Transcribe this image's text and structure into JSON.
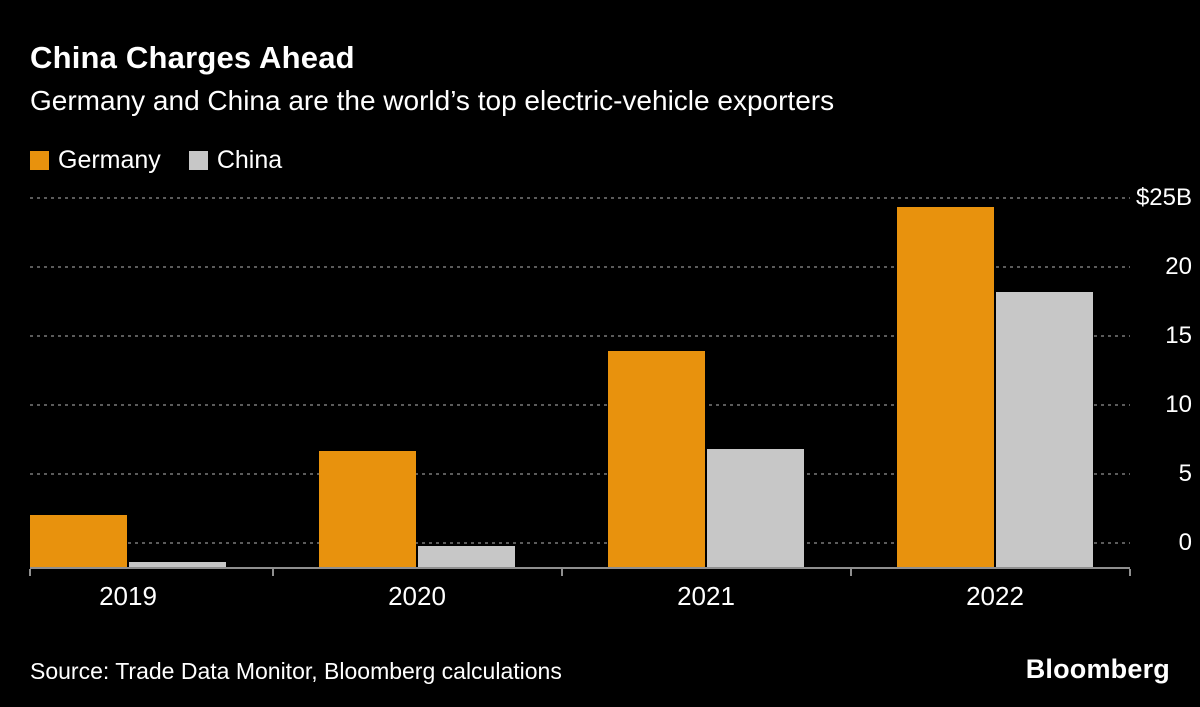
{
  "chart_data": {
    "type": "bar",
    "title": "China Charges Ahead",
    "subtitle": "Germany and China are the world’s top electric-vehicle exporters",
    "categories": [
      "2019",
      "2020",
      "2021",
      "2022"
    ],
    "series": [
      {
        "name": "Germany",
        "color": "#E8920D",
        "values": [
          3.6,
          7.9,
          14.6,
          24.3
        ]
      },
      {
        "name": "China",
        "color": "#C7C7C7",
        "values": [
          0.4,
          1.5,
          8,
          18.6
        ]
      }
    ],
    "ylim": [
      0,
      25
    ],
    "yticks": [
      0,
      5,
      10,
      15,
      20,
      25
    ],
    "ytick_labels": [
      "0",
      "5",
      "10",
      "15",
      "20",
      "$25B"
    ],
    "grid": "horizontal-dotted",
    "legend_position": "top-left"
  },
  "footer": {
    "source": "Source: Trade Data Monitor, Bloomberg calculations",
    "brand": "Bloomberg"
  },
  "colors": {
    "background": "#000000",
    "text": "#FFFFFF",
    "germany": "#E8920D",
    "china": "#C7C7C7",
    "gridline": "#5B5B5B",
    "axis": "#8F8F8F"
  }
}
